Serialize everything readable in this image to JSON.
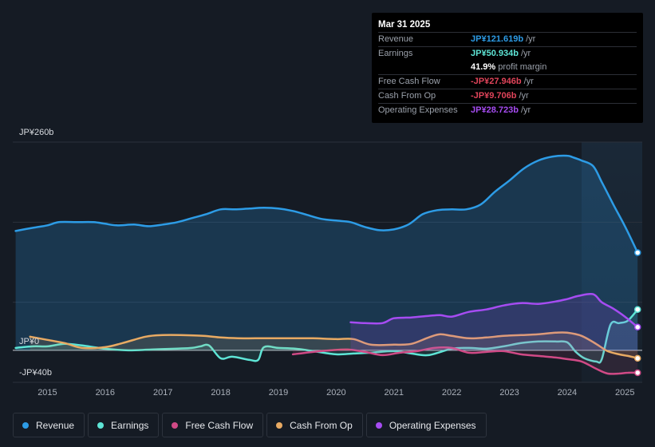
{
  "tooltip": {
    "date": "Mar 31 2025",
    "rows": [
      {
        "label": "Revenue",
        "value": "JP¥121.619b",
        "unit": "/yr",
        "color": "#2d9ce6"
      },
      {
        "label": "Earnings",
        "value": "JP¥50.934b",
        "unit": "/yr",
        "color": "#5ee5d6"
      },
      {
        "label": "",
        "value": "41.9%",
        "unit": "profit margin",
        "color": "#ffffff"
      },
      {
        "label": "Free Cash Flow",
        "value": "-JP¥27.946b",
        "unit": "/yr",
        "color": "#e0445a"
      },
      {
        "label": "Cash From Op",
        "value": "-JP¥9.706b",
        "unit": "/yr",
        "color": "#e0445a"
      },
      {
        "label": "Operating Expenses",
        "value": "JP¥28.723b",
        "unit": "/yr",
        "color": "#a64cf2"
      }
    ]
  },
  "legend": [
    {
      "label": "Revenue",
      "color": "#2d9ce6"
    },
    {
      "label": "Earnings",
      "color": "#5ee5d6"
    },
    {
      "label": "Free Cash Flow",
      "color": "#d04a86"
    },
    {
      "label": "Cash From Op",
      "color": "#e8aa63"
    },
    {
      "label": "Operating Expenses",
      "color": "#a64cf2"
    }
  ],
  "chart_data": {
    "type": "area",
    "unit": "JP¥ billions",
    "y_tick_labels": [
      "JP¥260b",
      "JP¥0",
      "-JP¥40b"
    ],
    "ylim": [
      -40,
      260
    ],
    "xlim": [
      2014.4,
      2025.3
    ],
    "x_tick_labels": [
      "2015",
      "2016",
      "2017",
      "2018",
      "2019",
      "2020",
      "2021",
      "2022",
      "2023",
      "2024",
      "2025"
    ],
    "highlight_start": 2024.25,
    "series": [
      {
        "name": "Revenue",
        "color": "#2d9ce6",
        "fill": true,
        "x": [
          2014.45,
          2014.75,
          2015.0,
          2015.2,
          2015.5,
          2015.8,
          2016.0,
          2016.2,
          2016.5,
          2016.75,
          2017.0,
          2017.25,
          2017.5,
          2017.75,
          2018.0,
          2018.25,
          2018.5,
          2018.75,
          2019.0,
          2019.25,
          2019.5,
          2019.75,
          2020.0,
          2020.25,
          2020.5,
          2020.75,
          2021.0,
          2021.25,
          2021.5,
          2021.75,
          2022.0,
          2022.25,
          2022.5,
          2022.75,
          2023.0,
          2023.25,
          2023.5,
          2023.75,
          2024.0,
          2024.1,
          2024.25,
          2024.45,
          2024.6,
          2024.8,
          2025.0,
          2025.22
        ],
        "y": [
          149,
          153,
          156,
          160,
          160,
          160,
          158,
          156,
          157,
          155,
          157,
          160,
          165,
          170,
          176,
          176,
          177,
          178,
          177,
          174,
          169,
          164,
          162,
          160,
          154,
          150,
          151,
          157,
          170,
          175,
          176,
          176,
          182,
          198,
          212,
          227,
          237,
          242,
          243,
          241,
          237,
          230,
          210,
          182,
          155,
          122
        ]
      },
      {
        "name": "Earnings",
        "color": "#5ee5d6",
        "fill": true,
        "x": [
          2014.45,
          2014.75,
          2015.0,
          2015.3,
          2015.6,
          2016.0,
          2016.4,
          2016.8,
          2017.2,
          2017.5,
          2017.65,
          2017.8,
          2018.0,
          2018.2,
          2018.5,
          2018.65,
          2018.75,
          2019.0,
          2019.3,
          2019.6,
          2020.0,
          2020.3,
          2020.6,
          2021.0,
          2021.3,
          2021.6,
          2022.0,
          2022.3,
          2022.6,
          2022.9,
          2023.2,
          2023.5,
          2023.8,
          2024.0,
          2024.15,
          2024.3,
          2024.5,
          2024.6,
          2024.75,
          2024.9,
          2025.05,
          2025.22
        ],
        "y": [
          3,
          5,
          5,
          8,
          6,
          2,
          0,
          1,
          2,
          3,
          5,
          6,
          -10,
          -8,
          -12,
          -12,
          4,
          3,
          2,
          -1,
          -5,
          -4,
          -3,
          -1,
          -4,
          -6,
          2,
          3,
          2,
          5,
          9,
          11,
          11,
          10,
          -2,
          -10,
          -14,
          -11,
          32,
          34,
          37,
          51
        ]
      },
      {
        "name": "Free Cash Flow",
        "color": "#d04a86",
        "fill": true,
        "x": [
          2019.25,
          2019.6,
          2019.9,
          2020.2,
          2020.5,
          2020.8,
          2021.1,
          2021.4,
          2021.7,
          2022.0,
          2022.3,
          2022.6,
          2022.9,
          2023.2,
          2023.5,
          2023.8,
          2024.0,
          2024.25,
          2024.5,
          2024.7,
          2024.9,
          2025.05,
          2025.22
        ],
        "y": [
          -5,
          -2,
          0,
          1,
          -2,
          -6,
          -3,
          -1,
          3,
          3,
          -3,
          -2,
          -1,
          -5,
          -7,
          -9,
          -11,
          -14,
          -23,
          -29,
          -29,
          -28,
          -28
        ]
      },
      {
        "name": "Cash From Op",
        "color": "#e8aa63",
        "fill": true,
        "x": [
          2014.7,
          2015.0,
          2015.3,
          2015.6,
          2016.0,
          2016.3,
          2016.7,
          2017.0,
          2017.3,
          2017.7,
          2018.0,
          2018.3,
          2018.6,
          2019.0,
          2019.3,
          2019.6,
          2020.0,
          2020.3,
          2020.6,
          2021.0,
          2021.3,
          2021.6,
          2021.8,
          2022.0,
          2022.3,
          2022.6,
          2022.9,
          2023.2,
          2023.5,
          2023.8,
          2024.0,
          2024.25,
          2024.5,
          2024.7,
          2024.9,
          2025.05,
          2025.22
        ],
        "y": [
          17,
          13,
          9,
          3,
          4,
          9,
          17,
          19,
          19,
          18,
          16,
          15,
          15,
          15,
          15,
          15,
          14,
          14,
          7,
          7,
          8,
          16,
          20,
          18,
          15,
          16,
          18,
          19,
          20,
          22,
          22,
          18,
          8,
          -1,
          -5,
          -7,
          -10
        ]
      },
      {
        "name": "Operating Expenses",
        "color": "#a64cf2",
        "fill": true,
        "x": [
          2020.25,
          2020.5,
          2020.8,
          2021.0,
          2021.3,
          2021.6,
          2021.8,
          2022.0,
          2022.3,
          2022.6,
          2022.9,
          2023.2,
          2023.5,
          2023.8,
          2024.0,
          2024.2,
          2024.45,
          2024.6,
          2024.8,
          2025.0,
          2025.22
        ],
        "y": [
          35,
          34,
          34,
          40,
          41,
          43,
          44,
          42,
          48,
          51,
          56,
          59,
          58,
          61,
          64,
          68,
          70,
          60,
          52,
          42,
          29
        ]
      }
    ]
  }
}
